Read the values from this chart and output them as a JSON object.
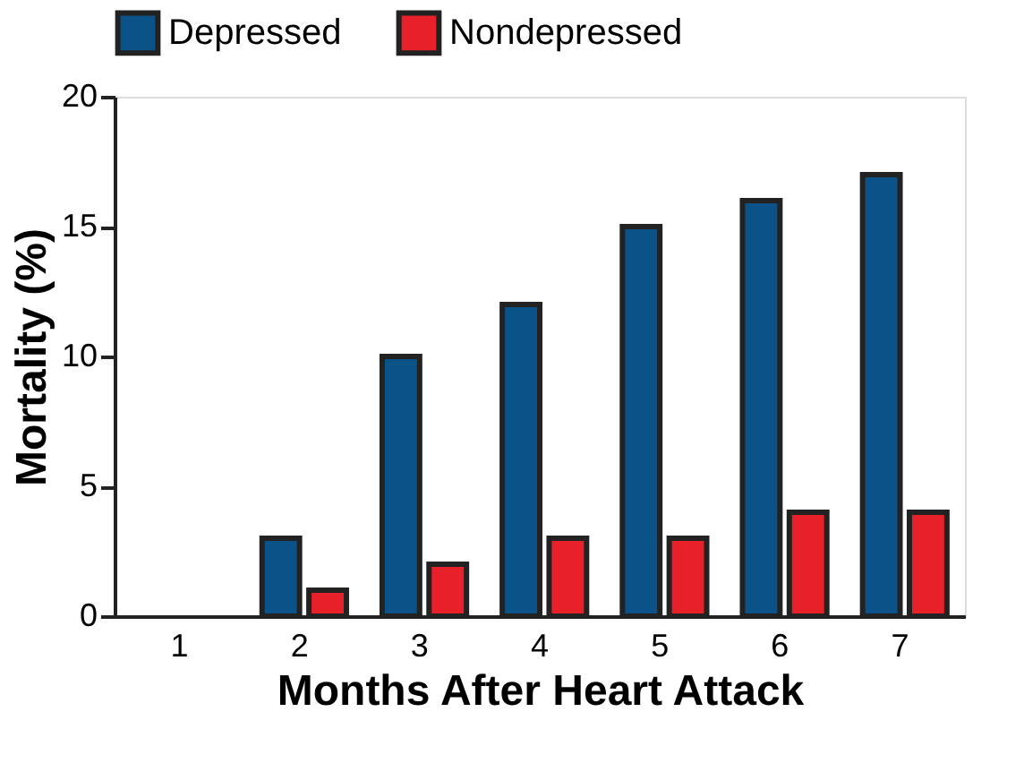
{
  "chart_data": {
    "type": "bar",
    "xlabel": "Months After Heart Attack",
    "ylabel": "Mortality (%)",
    "categories": [
      "1",
      "2",
      "3",
      "4",
      "5",
      "6",
      "7"
    ],
    "series": [
      {
        "name": "Depressed",
        "color": "#0b5288",
        "values": [
          null,
          3,
          10,
          12,
          15,
          16,
          17
        ]
      },
      {
        "name": "Nondepressed",
        "color": "#e8202a",
        "values": [
          null,
          1,
          2,
          3,
          3,
          4,
          4
        ]
      }
    ],
    "ylim": [
      0,
      20
    ],
    "yticks": [
      0,
      5,
      10,
      15,
      20
    ],
    "grid": false,
    "legend": "top"
  }
}
